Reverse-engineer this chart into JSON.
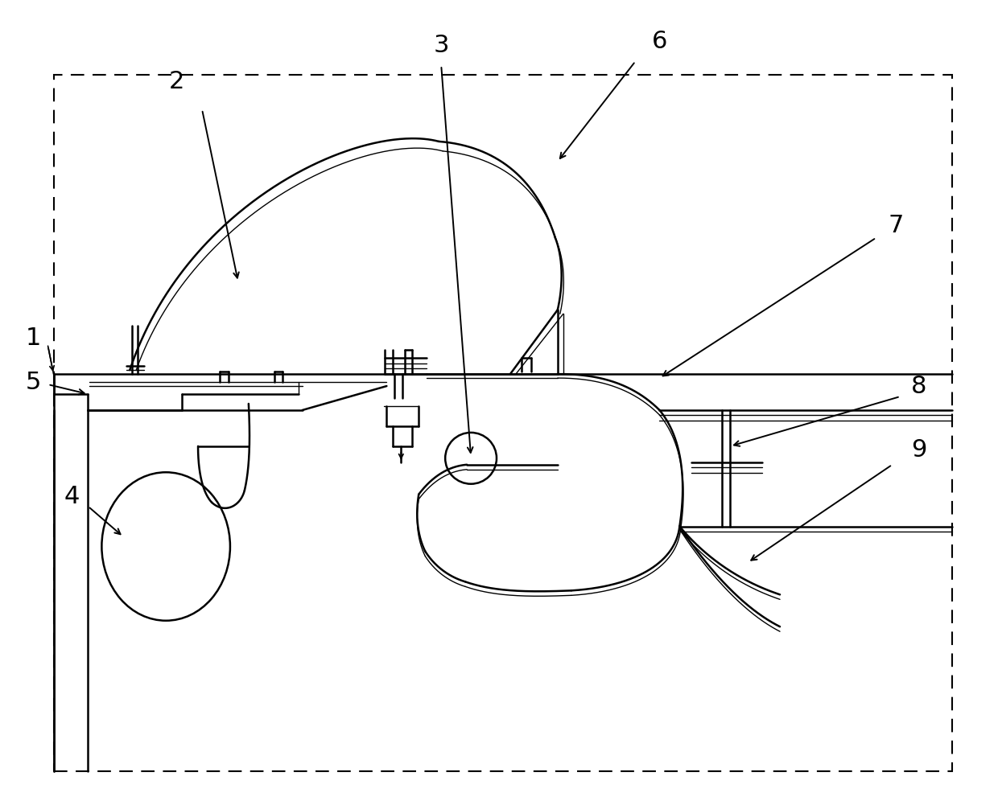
{
  "background_color": "#ffffff",
  "line_color": "#000000",
  "fig_width": 12.4,
  "fig_height": 10.01,
  "dpi": 100
}
